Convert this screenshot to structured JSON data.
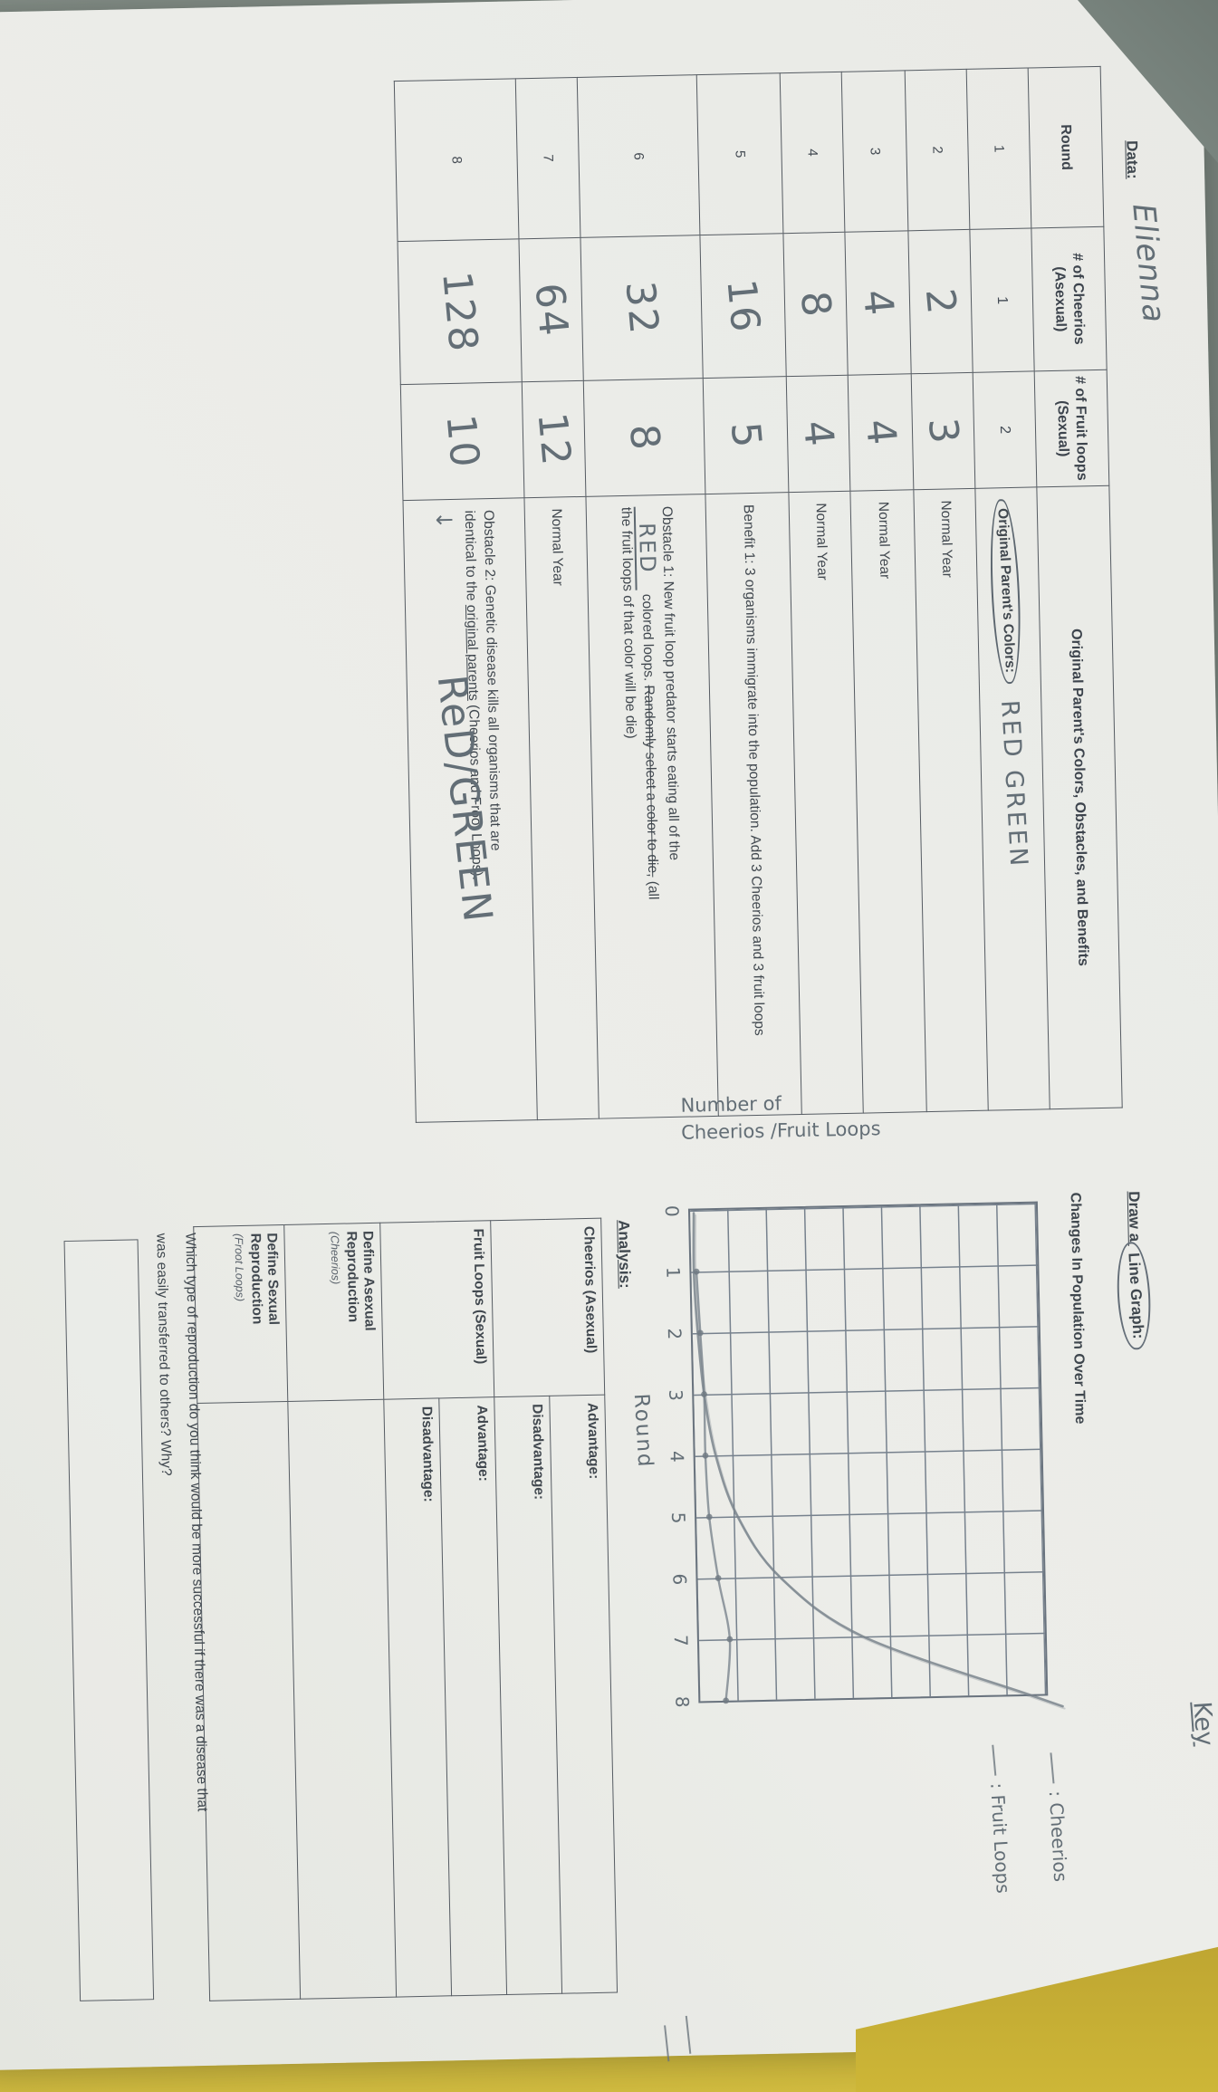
{
  "colors": {
    "paper": "#eaebe7",
    "desk_surface": "#828d87",
    "second_paper": "#c9b233",
    "pencil": "#6b757d",
    "print_ink": "#434b55"
  },
  "header": {
    "date_label": "Data:",
    "student_name": "Elienna"
  },
  "data_table": {
    "headers": [
      "Round",
      "# of Cheerios (Asexual)",
      "# of Fruit loops (Sexual)",
      "Original Parent's Colors, Obstacles, and Benefits"
    ],
    "rows": [
      {
        "round": "1",
        "cheerios": "1",
        "fruitloops": "2",
        "colors_label": "Original Parent's Colors:",
        "colors_value": "RED GREEN"
      },
      {
        "round": "2",
        "cheerios": "2",
        "fruitloops": "3",
        "note": "Normal Year"
      },
      {
        "round": "3",
        "cheerios": "4",
        "fruitloops": "4",
        "note": "Normal Year"
      },
      {
        "round": "4",
        "cheerios": "8",
        "fruitloops": "4",
        "note": "Normal Year"
      },
      {
        "round": "5",
        "cheerios": "16",
        "fruitloops": "5",
        "note": "Benefit 1: 3 organisms immigrate into the population. Add 3 Cheerios and 3 fruit loops"
      },
      {
        "round": "6",
        "cheerios": "32",
        "fruitloops": "8",
        "obstacle1": {
          "lead": "Obstacle 1: New fruit loop predator starts eating all of the",
          "blank_value": "RED",
          "after_blank": "colored loops.",
          "struck": "Randomly select a color to die,",
          "paren": "(all the fruit loops of that color will be die)"
        }
      },
      {
        "round": "7",
        "cheerios": "64",
        "fruitloops": "12",
        "note": "Normal Year"
      },
      {
        "round": "8",
        "cheerios": "128",
        "fruitloops": "10",
        "obstacle2": {
          "lead": "Obstacle 2: Genetic disease kills all organisms that are identical to the",
          "underlined": "original parents",
          "tail": "(Cheerios and Froot Loops).",
          "arrow": "↓",
          "handwritten": "ReD/GREEN"
        }
      }
    ]
  },
  "graph": {
    "title_lead": "Draw a ",
    "title_circled": "Line Graph:",
    "subtitle": "Changes In Population Over Time",
    "y_axis_label_line1": "Number of",
    "y_axis_label_line2": "Cheerios /Fruit Loops",
    "x_axis_label": "Round",
    "key_title": "Key",
    "key_items": [
      ": Cheerios",
      ": Fruit Loops"
    ]
  },
  "chart_data": {
    "type": "line",
    "x": [
      1,
      2,
      3,
      4,
      5,
      6,
      7,
      8
    ],
    "x_ticks": [
      "0",
      "1",
      "2",
      "3",
      "4",
      "5",
      "6",
      "7",
      "8"
    ],
    "series": [
      {
        "name": "Cheerios (Asexual)",
        "values": [
          1,
          2,
          4,
          8,
          16,
          32,
          64,
          128
        ]
      },
      {
        "name": "Fruit Loops (Sexual)",
        "values": [
          2,
          3,
          4,
          4,
          5,
          8,
          12,
          10
        ]
      }
    ],
    "title": "Changes In Population Over Time",
    "xlabel": "Round",
    "ylabel": "Number of Cheerios /Fruit Loops",
    "ylim": [
      0,
      135
    ],
    "grid": {
      "cols": 8,
      "rows": 9,
      "units_per_row": 15
    },
    "legend_position": "right-of-plot"
  },
  "analysis": {
    "heading": "Analysis:",
    "row1_label": "Cheerios (Asexual)",
    "row2_label": "Fruit Loops (Sexual)",
    "advantage_label": "Advantage:",
    "disadvantage_label": "Disadvantage:",
    "define1_label": "Define Asexual Reproduction",
    "define1_sub": "(Cheerios)",
    "define2_label": "Define Sexual Reproduction",
    "define2_sub": "(Froot Loops)",
    "question_line1": "Which type of reproduction do you think would be more successful if there was a disease that",
    "question_line2": "was easily transferred to others? Why?"
  }
}
